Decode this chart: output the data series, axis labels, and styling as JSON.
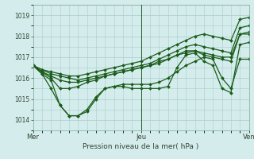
{
  "xlabel": "Pression niveau de la mer( hPa )",
  "xlim": [
    0,
    48
  ],
  "ylim": [
    1013.5,
    1019.5
  ],
  "yticks": [
    1014,
    1015,
    1016,
    1017,
    1018,
    1019
  ],
  "xtick_positions": [
    0,
    24,
    48
  ],
  "xtick_labels": [
    "Mer",
    "Jeu",
    "Ven"
  ],
  "vline_x": 24,
  "bg_color": "#d4ecec",
  "grid_color": "#aacccc",
  "line_color": "#1a5c1a",
  "series": [
    [
      1016.6,
      1016.2,
      1015.9,
      1014.7,
      1014.2,
      1014.2,
      1014.4,
      1015.0,
      1015.5,
      1015.6,
      1015.6,
      1015.5,
      1015.5,
      1015.5,
      1015.5,
      1015.6,
      1016.5,
      1017.1,
      1017.2,
      1016.8,
      1016.6,
      1015.5,
      1015.3,
      1017.6,
      1017.7
    ],
    [
      1016.6,
      1016.2,
      1015.5,
      1014.7,
      1014.2,
      1014.2,
      1014.5,
      1015.1,
      1015.5,
      1015.6,
      1015.7,
      1015.7,
      1015.7,
      1015.7,
      1015.8,
      1016.0,
      1016.3,
      1016.6,
      1016.8,
      1017.0,
      1016.9,
      1016.0,
      1015.5,
      1016.9,
      1016.9
    ],
    [
      1016.6,
      1016.3,
      1016.0,
      1015.5,
      1015.5,
      1015.6,
      1015.8,
      1015.9,
      1016.1,
      1016.2,
      1016.3,
      1016.4,
      1016.5,
      1016.6,
      1016.7,
      1016.9,
      1017.1,
      1017.2,
      1017.3,
      1017.1,
      1017.0,
      1016.9,
      1016.8,
      1018.1,
      1018.2
    ],
    [
      1016.6,
      1016.3,
      1016.1,
      1015.9,
      1015.8,
      1015.8,
      1015.9,
      1016.0,
      1016.1,
      1016.2,
      1016.3,
      1016.4,
      1016.5,
      1016.6,
      1016.8,
      1016.9,
      1017.1,
      1017.3,
      1017.3,
      1017.2,
      1017.1,
      1017.0,
      1017.0,
      1018.1,
      1018.1
    ],
    [
      1016.6,
      1016.4,
      1016.2,
      1016.1,
      1016.0,
      1015.9,
      1016.0,
      1016.1,
      1016.2,
      1016.3,
      1016.4,
      1016.5,
      1016.6,
      1016.7,
      1016.9,
      1017.1,
      1017.3,
      1017.5,
      1017.6,
      1017.5,
      1017.4,
      1017.3,
      1017.2,
      1018.4,
      1018.5
    ],
    [
      1016.6,
      1016.4,
      1016.3,
      1016.2,
      1016.1,
      1016.1,
      1016.2,
      1016.3,
      1016.4,
      1016.5,
      1016.6,
      1016.7,
      1016.8,
      1017.0,
      1017.2,
      1017.4,
      1017.6,
      1017.8,
      1018.0,
      1018.1,
      1018.0,
      1017.9,
      1017.8,
      1018.8,
      1018.9
    ]
  ],
  "marker": "D",
  "markersize": 2.0,
  "linewidth": 0.9
}
